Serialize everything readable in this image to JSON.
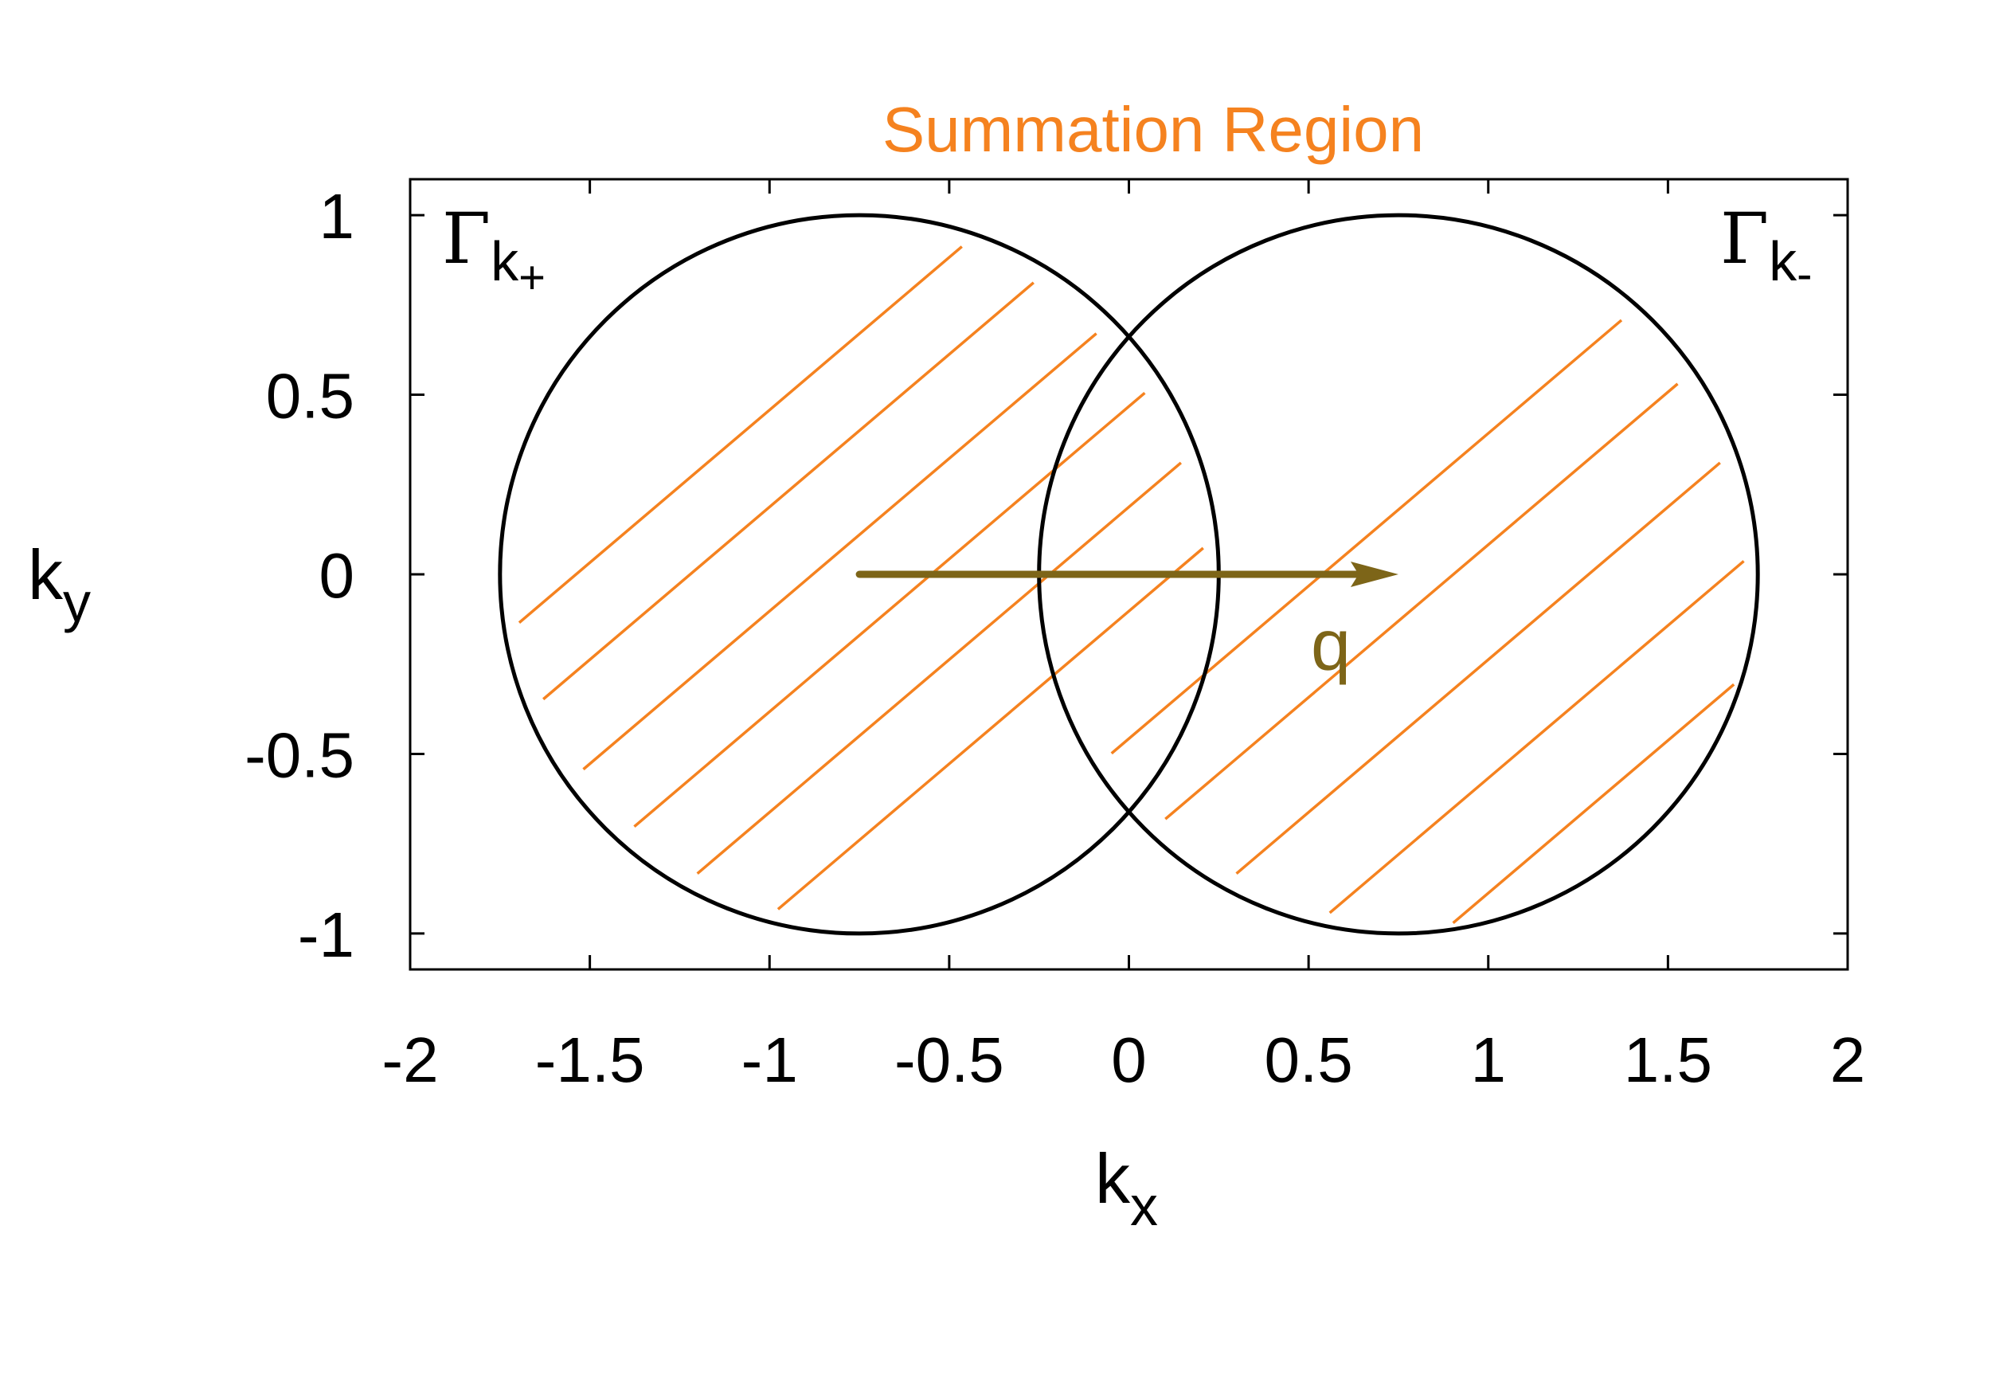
{
  "chart_data": {
    "type": "line",
    "title": "Summation Region",
    "xlabel": "k",
    "xlabel_sub": "x",
    "ylabel": "k",
    "ylabel_sub": "y",
    "xlim": [
      -2,
      2
    ],
    "ylim": [
      -1.1,
      1.1
    ],
    "xticks": [
      -2,
      -1.5,
      -1,
      -0.5,
      0,
      0.5,
      1,
      1.5,
      2
    ],
    "xtick_labels": [
      "-2",
      "-1.5",
      "-1",
      "-0.5",
      "0",
      "0.5",
      "1",
      "1.5",
      "2"
    ],
    "yticks": [
      1,
      0.5,
      0,
      -0.5,
      -1
    ],
    "ytick_labels": [
      "1",
      "0.5",
      "0",
      "-0.5",
      "-1"
    ],
    "grid": false,
    "series": [
      {
        "shape": "circle",
        "center": [
          -0.75,
          0
        ],
        "radius": 1.0,
        "color": "#000000",
        "hatched": true
      },
      {
        "shape": "circle",
        "center": [
          0.75,
          0
        ],
        "radius": 1.0,
        "color": "#000000",
        "hatched": true
      }
    ],
    "hatch_color": "#f5821f",
    "hatch_slope": 0.85,
    "hatch_offsets_left": [
      -0.74,
      -0.45,
      -0.17,
      0.11,
      0.4,
      0.67
    ],
    "hatch_offsets_right": [
      -1.1,
      -0.78,
      -0.45,
      -0.13,
      0.18
    ],
    "arrow": {
      "from": [
        -0.75,
        0
      ],
      "to": [
        0.75,
        0
      ],
      "label": "q",
      "color": "#7d6518"
    },
    "annotations": [
      {
        "text": "Γ",
        "sub": "k",
        "subsub": "+",
        "position": "top-left"
      },
      {
        "text": "Γ",
        "sub": "k",
        "subsub": "-",
        "position": "top-right"
      }
    ],
    "title_color": "#f5821f"
  }
}
